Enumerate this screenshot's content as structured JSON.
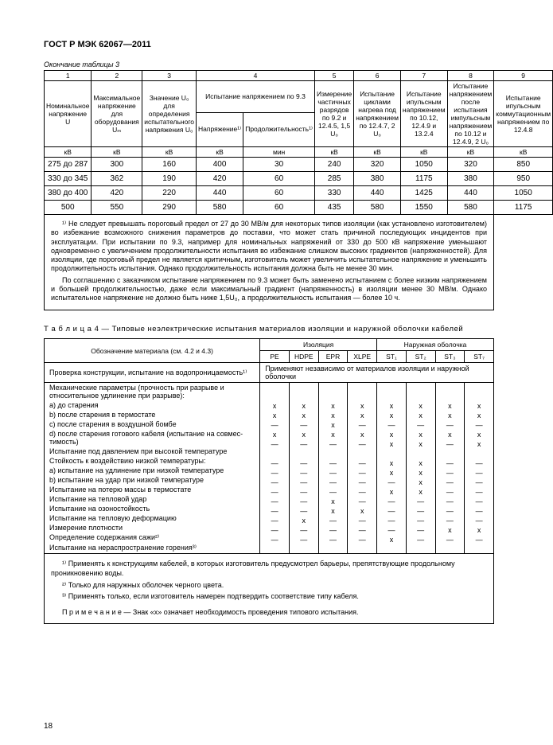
{
  "header": "ГОСТ Р МЭК 62067—2011",
  "table3": {
    "caption": "Окончание таблицы 3",
    "cols": [
      "1",
      "2",
      "3",
      "4",
      "5",
      "6",
      "7",
      "8",
      "9"
    ],
    "header_rows": {
      "c1": "Номинальное напряжение U",
      "c2": "Максимальное напряжение для оборудования Uₘ",
      "c3": "Значение U₀ для определения испытательного напряжения U₀",
      "c4_top": "Испытание напряжением по 9.3",
      "c4a": "Напряжение¹⁾",
      "c4b": "Продолжительность¹⁾",
      "c5": "Измерение частичных разрядов по 9.2 и 12.4.5, 1,5 U₀",
      "c6": "Испытание циклами нагрева под напряжением по 12.4.7, 2 U₀",
      "c7": "Испытание ипульсным напряжением по 10.12, 12.4.9 и 13.2.4",
      "c8": "Испытание напряжением после испытания импульсным напряжением по 10.12 и 12.4.9, 2 U₀",
      "c9": "Испытание ипульсным коммутационным напряжением по 12.4.8"
    },
    "unit_row": [
      "кВ",
      "кВ",
      "кВ",
      "кВ",
      "мин",
      "кВ",
      "кВ",
      "кВ",
      "кВ",
      "кВ"
    ],
    "data": [
      [
        "275 до 287",
        "300",
        "160",
        "400",
        "30",
        "240",
        "320",
        "1050",
        "320",
        "850"
      ],
      [
        "330 до 345",
        "362",
        "190",
        "420",
        "60",
        "285",
        "380",
        "1175",
        "380",
        "950"
      ],
      [
        "380 до 400",
        "420",
        "220",
        "440",
        "60",
        "330",
        "440",
        "1425",
        "440",
        "1050"
      ],
      [
        "500",
        "550",
        "290",
        "580",
        "60",
        "435",
        "580",
        "1550",
        "580",
        "1175"
      ]
    ],
    "footnote1": "¹⁾ Не следует превышать пороговый предел от 27 до 30 МВ/м для некоторых типов изоляции (как установлено изго­товителем) во избежание возможного снижения параметров до поставки, что может стать причиной последующих инци­дентов при эксплуатации. При испытании по 9.3, например для номинальных напряжений от 330 до 500 кВ напряжение уменьшают одновременно с увеличением продолжительности испытания во избежание слишком высоких градиентов (напряженностей). Для изоляции, где пороговый предел не является критичным, изготовитель может увеличить ис­пытательное напряжение и уменьшить продолжительность испытания. Однако продолжительность испытания должна быть не менее 30 мин.",
    "footnote2": "По соглашению с заказчиком испытание напряжением по 9.3 может быть заменено испытанием с более низким на­пряжением и большей продолжительностью, даже если максимальный градиент (напряженность) в изоляции менее 30 МВ/м. Однако испытательное напряжение не должно быть ниже 1,5U₀, а продолжительность испытания — более 10 ч."
  },
  "table4": {
    "title": "Т а б л и ц а   4 — Типовые неэлектрические испытания материалов изоляции и наружной оболочки кабелей",
    "col_label": "Обозначение материала (см. 4.2 и 4.3)",
    "group1": "Изоляция",
    "group2": "Наружная оболочка",
    "subcols": [
      "PE",
      "HDPE",
      "EPR",
      "XLPE",
      "ST₁",
      "ST₂",
      "ST₃",
      "ST₇"
    ],
    "row_special_label": "Проверка конструкции, испытание на водопроница­емость¹⁾",
    "row_special_text": "Применяют независимо от материалов изоляции и наружной оболочки",
    "rows": [
      {
        "label": "Механические параметры (прочность при разрыве и относительное удлинение при разрыве):",
        "v": [
          "",
          "",
          "",
          "",
          "",
          "",
          "",
          ""
        ]
      },
      {
        "label": "a) до старения",
        "v": [
          "x",
          "x",
          "x",
          "x",
          "x",
          "x",
          "x",
          "x"
        ]
      },
      {
        "label": "b) после старения в термостате",
        "v": [
          "x",
          "x",
          "x",
          "x",
          "x",
          "x",
          "x",
          "x"
        ]
      },
      {
        "label": "c) после старения в воздушной бомбе",
        "v": [
          "—",
          "—",
          "x",
          "—",
          "—",
          "—",
          "—",
          "—"
        ]
      },
      {
        "label": "d) после старения готового кабеля (испытание на совмес­тимость)",
        "v": [
          "x",
          "x",
          "x",
          "x",
          "x",
          "x",
          "x",
          "x"
        ]
      },
      {
        "label": "Испытание под давлением при высокой температуре",
        "v": [
          "—",
          "—",
          "—",
          "—",
          "x",
          "x",
          "—",
          "x"
        ]
      },
      {
        "label": "Стойкость к воздействию низкой температуры:",
        "v": [
          "",
          "",
          "",
          "",
          "",
          "",
          "",
          ""
        ]
      },
      {
        "label": "a) испытание на удлинение при низкой температуре",
        "v": [
          "—",
          "—",
          "—",
          "—",
          "x",
          "x",
          "—",
          "—"
        ]
      },
      {
        "label": "b) испытание на удар при низкой температуре",
        "v": [
          "—",
          "—",
          "—",
          "—",
          "x",
          "x",
          "—",
          "—"
        ]
      },
      {
        "label": "Испытание на потерю массы в термостате",
        "v": [
          "—",
          "—",
          "—",
          "—",
          "—",
          "x",
          "—",
          "—"
        ]
      },
      {
        "label": "Испытание на тепловой удар",
        "v": [
          "—",
          "—",
          "—",
          "—",
          "x",
          "x",
          "—",
          "—"
        ]
      },
      {
        "label": "Испытание на озоностойкость",
        "v": [
          "—",
          "—",
          "x",
          "—",
          "—",
          "—",
          "—",
          "—"
        ]
      },
      {
        "label": "Испытание на тепловую деформацию",
        "v": [
          "—",
          "—",
          "x",
          "x",
          "—",
          "—",
          "—",
          "—"
        ]
      },
      {
        "label": "Измерение плотности",
        "v": [
          "—",
          "x",
          "—",
          "—",
          "—",
          "—",
          "—",
          "—"
        ]
      },
      {
        "label": "Определение содержания сажи²⁾",
        "v": [
          "—",
          "—",
          "—",
          "—",
          "—",
          "—",
          "x",
          "x"
        ]
      },
      {
        "label": "Испытание на нераспространение горения³⁾",
        "v": [
          "—",
          "—",
          "—",
          "—",
          "x",
          "—",
          "—",
          "—"
        ]
      }
    ],
    "notes": [
      "¹⁾ Применять к конструкциям кабелей, в которых изготовитель предусмотрел барьеры, препятствующие про­дольному проникновению воды.",
      "²⁾ Только для наружных оболочек черного цвета.",
      "³⁾ Применять только, если изготовитель намерен подтвердить соответствие типу кабеля."
    ],
    "remark": "П р и м е ч а н и е — Знак «х» означает необходимость проведения типового испытания."
  },
  "page_number": "18"
}
